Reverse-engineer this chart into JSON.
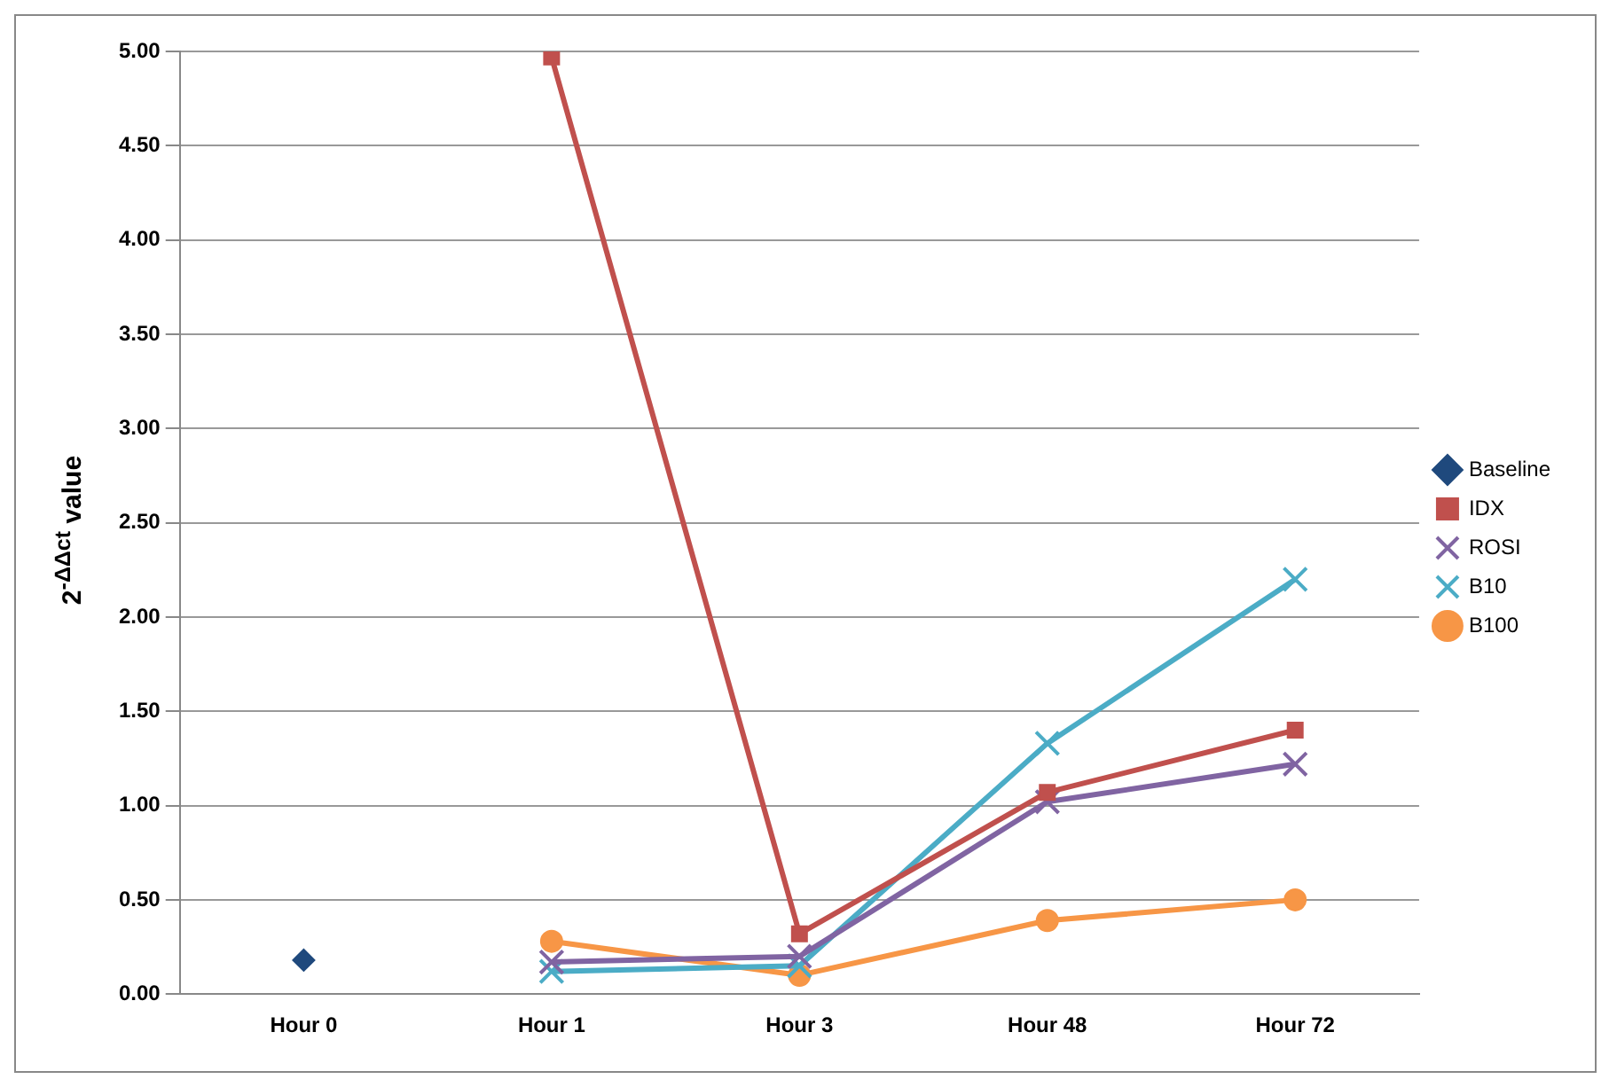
{
  "chart_data": {
    "type": "line",
    "ylabel": "2$^{-ΔΔct}$ value",
    "categories": [
      "Hour 0",
      "Hour 1",
      "Hour 3",
      "Hour 48",
      "Hour 72"
    ],
    "series": [
      {
        "name": "Baseline",
        "color": "#1f497d",
        "marker": "diamond",
        "values": [
          0.18,
          null,
          null,
          null,
          null
        ]
      },
      {
        "name": "IDX",
        "color": "#c0504d",
        "marker": "square",
        "values": [
          null,
          4.97,
          0.32,
          1.07,
          1.4
        ]
      },
      {
        "name": "ROSI",
        "color": "#8064a2",
        "marker": "cross",
        "values": [
          null,
          0.17,
          0.2,
          1.02,
          1.22
        ]
      },
      {
        "name": "B10",
        "color": "#4bacc6",
        "marker": "cross",
        "values": [
          null,
          0.12,
          0.15,
          1.33,
          2.2
        ]
      },
      {
        "name": "B100",
        "color": "#f79646",
        "marker": "circle",
        "values": [
          null,
          0.28,
          0.1,
          0.39,
          0.5
        ]
      }
    ],
    "ylim": [
      0,
      5
    ],
    "yticks": [
      {
        "value": 0,
        "label": "0.00"
      },
      {
        "value": 0.5,
        "label": "0.50"
      },
      {
        "value": 1,
        "label": "1.00"
      },
      {
        "value": 1.5,
        "label": "1.50"
      },
      {
        "value": 2,
        "label": "2.00"
      },
      {
        "value": 2.5,
        "label": "2.50"
      },
      {
        "value": 3,
        "label": "3.00"
      },
      {
        "value": 3.5,
        "label": "3.50"
      },
      {
        "value": 4,
        "label": "4.00"
      },
      {
        "value": 4.5,
        "label": "4.50"
      },
      {
        "value": 5,
        "label": "5.00"
      }
    ],
    "grid": "y",
    "legend": "right",
    "line_style": "solid"
  }
}
